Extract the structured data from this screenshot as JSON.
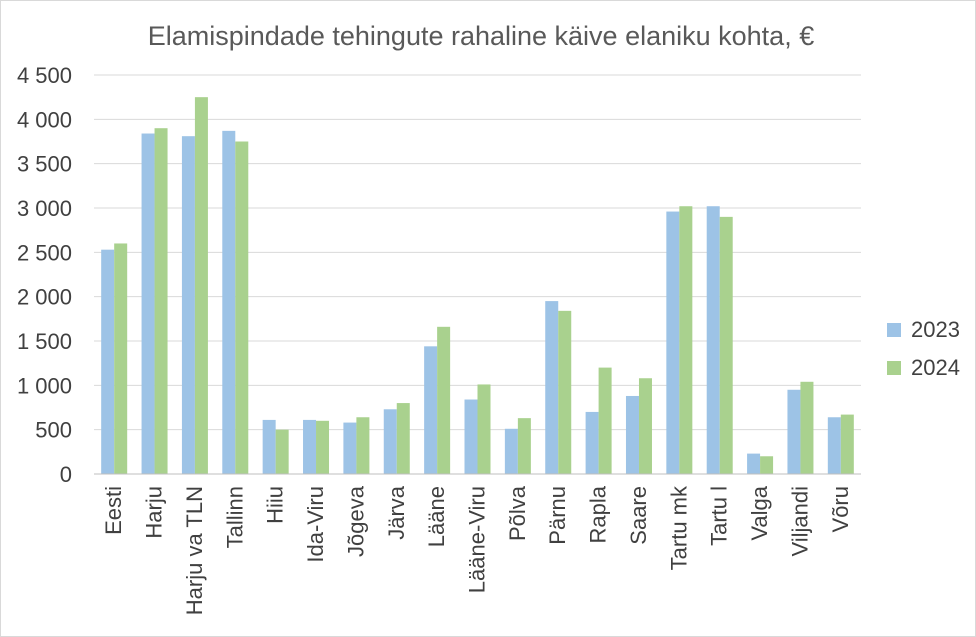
{
  "chart_data": {
    "type": "bar",
    "title": "Elamispindade tehingute rahaline käive elaniku kohta, €",
    "xlabel": "",
    "ylabel": "",
    "ylim": [
      0,
      4500
    ],
    "yticks": [
      0,
      500,
      1000,
      1500,
      2000,
      2500,
      3000,
      3500,
      4000,
      4500
    ],
    "ytick_labels": [
      "0",
      "500",
      "1 000",
      "1 500",
      "2 000",
      "2 500",
      "3 000",
      "3 500",
      "4 000",
      "4 500"
    ],
    "grid": true,
    "legend_position": "right",
    "categories": [
      "Eesti",
      "Harju",
      "Harju va TLN",
      "Tallinn",
      "Hiiu",
      "Ida-Viru",
      "Jõgeva",
      "Järva",
      "Lääne",
      "Lääne-Viru",
      "Põlva",
      "Pärnu",
      "Rapla",
      "Saare",
      "Tartu mk",
      "Tartu l",
      "Valga",
      "Viljandi",
      "Võru"
    ],
    "series": [
      {
        "name": "2023",
        "color": "#9dc3e6",
        "values": [
          2530,
          3840,
          3810,
          3870,
          610,
          610,
          580,
          730,
          1440,
          840,
          510,
          1950,
          700,
          880,
          2960,
          3020,
          230,
          950,
          640
        ]
      },
      {
        "name": "2024",
        "color": "#a9d18e",
        "values": [
          2600,
          3900,
          4250,
          3750,
          500,
          600,
          640,
          800,
          1660,
          1010,
          630,
          1840,
          1200,
          1080,
          3020,
          2900,
          200,
          1040,
          670
        ]
      }
    ]
  }
}
